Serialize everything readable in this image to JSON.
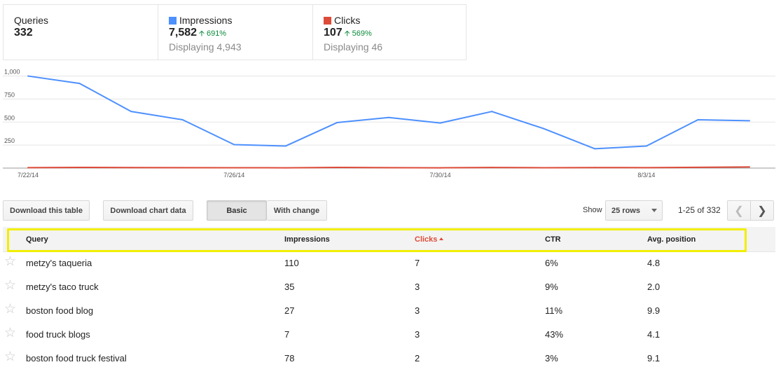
{
  "stats": [
    {
      "label": "Queries",
      "value": "332"
    },
    {
      "label": "Impressions",
      "value": "7,582",
      "change": "691%",
      "displaying": "Displaying 4,943",
      "color": "#4d90fe"
    },
    {
      "label": "Clicks",
      "value": "107",
      "change": "569%",
      "displaying": "Displaying 46",
      "color": "#dd4b39"
    }
  ],
  "chart_data": {
    "type": "line",
    "x": [
      "7/22/14",
      "7/23/14",
      "7/24/14",
      "7/25/14",
      "7/26/14",
      "7/27/14",
      "7/28/14",
      "7/29/14",
      "7/30/14",
      "7/31/14",
      "8/1/14",
      "8/2/14",
      "8/3/14",
      "8/4/14",
      "8/5/14"
    ],
    "x_tick_labels": [
      "7/22/14",
      "7/26/14",
      "7/30/14",
      "8/3/14"
    ],
    "y_tick_labels": [
      "1,000",
      "750",
      "500",
      "250"
    ],
    "ylim": [
      0,
      1050
    ],
    "series": [
      {
        "name": "Impressions",
        "color": "#4d90fe",
        "values": [
          1000,
          920,
          615,
          525,
          255,
          240,
          495,
          550,
          490,
          615,
          430,
          210,
          240,
          525,
          515
        ]
      },
      {
        "name": "Clicks",
        "color": "#dd4b39",
        "values": [
          5,
          8,
          6,
          5,
          4,
          3,
          8,
          5,
          3,
          7,
          4,
          6,
          5,
          9,
          12
        ]
      }
    ],
    "grid": true
  },
  "toolbar": {
    "download_table": "Download this table",
    "download_chart": "Download chart data",
    "view_basic": "Basic",
    "view_change": "With change",
    "show_label": "Show",
    "rows_value": "25 rows",
    "range": "1-25 of 332"
  },
  "table": {
    "headers": {
      "query": "Query",
      "impressions": "Impressions",
      "clicks": "Clicks",
      "ctr": "CTR",
      "position": "Avg. position"
    },
    "rows": [
      {
        "query": "metzy's taqueria",
        "impressions": "110",
        "clicks": "7",
        "ctr": "6%",
        "position": "4.8"
      },
      {
        "query": "metzy's taco truck",
        "impressions": "35",
        "clicks": "3",
        "ctr": "9%",
        "position": "2.0"
      },
      {
        "query": "boston food blog",
        "impressions": "27",
        "clicks": "3",
        "ctr": "11%",
        "position": "9.9"
      },
      {
        "query": "food truck blogs",
        "impressions": "7",
        "clicks": "3",
        "ctr": "43%",
        "position": "4.1"
      },
      {
        "query": "boston food truck festival",
        "impressions": "78",
        "clicks": "2",
        "ctr": "3%",
        "position": "9.1"
      }
    ]
  }
}
